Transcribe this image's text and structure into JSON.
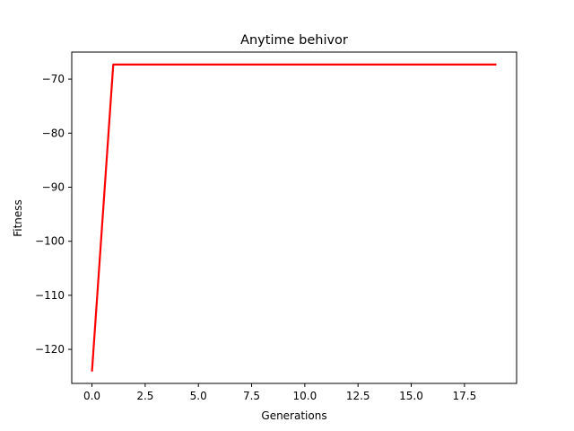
{
  "chart_data": {
    "type": "line",
    "title": "Anytime behivor",
    "xlabel": "Generations",
    "ylabel": "Fitness",
    "grid": false,
    "legend": "none",
    "xlim": [
      -0.95,
      19.95
    ],
    "ylim": [
      -126.3,
      -65.0
    ],
    "xticks": [
      0,
      2.5,
      5,
      7.5,
      10,
      12.5,
      15,
      17.5
    ],
    "xtick_labels": [
      "0.0",
      "2.5",
      "5.0",
      "7.5",
      "10.0",
      "12.5",
      "15.0",
      "17.5"
    ],
    "yticks": [
      -120,
      -110,
      -100,
      -90,
      -80,
      -70
    ],
    "ytick_labels": [
      "−120",
      "−110",
      "−100",
      "−90",
      "−80",
      "−70"
    ],
    "series": [
      {
        "name": "Fitness",
        "color": "#ff0000",
        "x": [
          0,
          1,
          2,
          3,
          4,
          5,
          6,
          7,
          8,
          9,
          10,
          11,
          12,
          13,
          14,
          15,
          16,
          17,
          18,
          19
        ],
        "values": [
          -124.1,
          -67.3,
          -67.3,
          -67.3,
          -67.3,
          -67.3,
          -67.3,
          -67.3,
          -67.3,
          -67.3,
          -67.3,
          -67.3,
          -67.3,
          -67.3,
          -67.3,
          -67.3,
          -67.3,
          -67.3,
          -67.3,
          -67.3
        ]
      }
    ]
  }
}
